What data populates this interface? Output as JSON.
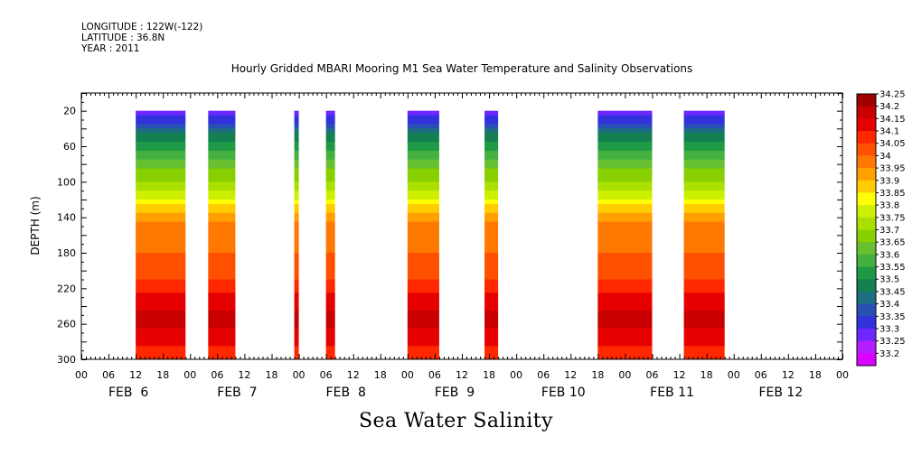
{
  "header": {
    "longitude": "LONGITUDE : 122W(-122)",
    "latitude": "LATITUDE : 36.8N",
    "year": "YEAR : 2011"
  },
  "chart_title": "Hourly Gridded MBARI Mooring M1 Sea Water Temperature and Salinity Observations",
  "bottom_title": "Sea Water Salinity",
  "chart_data": {
    "type": "heatmap",
    "variable": "Sea Water Salinity",
    "ylabel": "DEPTH (m)",
    "ylim": [
      300,
      0
    ],
    "y_ticks": [
      20,
      60,
      100,
      140,
      180,
      220,
      260,
      300
    ],
    "x_range_hours": [
      0,
      168
    ],
    "x_hour_ticks": [
      "00",
      "06",
      "12",
      "18"
    ],
    "days": [
      "FEB  6",
      "FEB  7",
      "FEB  8",
      "FEB  9",
      "FEB 10",
      "FEB 11",
      "FEB 12"
    ],
    "colorbar": {
      "levels": [
        "34.25",
        "34.2",
        "34.15",
        "34.1",
        "34.05",
        "34",
        "33.95",
        "33.9",
        "33.85",
        "33.8",
        "33.75",
        "33.7",
        "33.65",
        "33.6",
        "33.55",
        "33.5",
        "33.45",
        "33.4",
        "33.35",
        "33.3",
        "33.25",
        "33.2"
      ],
      "colors": [
        "#a00000",
        "#c80000",
        "#e60000",
        "#ff2800",
        "#ff5000",
        "#ff7800",
        "#ffa000",
        "#ffcc00",
        "#ffff00",
        "#ccf000",
        "#aae000",
        "#88d000",
        "#66c030",
        "#44b040",
        "#1e9a46",
        "#148050",
        "#1e6e82",
        "#2850b4",
        "#3232dc",
        "#6e28ff",
        "#b41eff",
        "#dc00ff"
      ]
    },
    "data_windows": [
      {
        "start": "FEB 6 12:00",
        "end": "FEB 6 23:00"
      },
      {
        "start": "FEB 7 04:00",
        "end": "FEB 7 10:00"
      },
      {
        "start": "FEB 7 23:00",
        "end": "FEB 8 00:00"
      },
      {
        "start": "FEB 8 06:00",
        "end": "FEB 8 08:00"
      },
      {
        "start": "FEB 9 00:00",
        "end": "FEB 9 07:00"
      },
      {
        "start": "FEB 9 17:00",
        "end": "FEB 9 20:00"
      },
      {
        "start": "FEB 10 18:00",
        "end": "FEB 11 06:00"
      },
      {
        "start": "FEB 11 13:00",
        "end": "FEB 11 22:00"
      }
    ],
    "profile": [
      {
        "depth": 20,
        "salinity": 33.3
      },
      {
        "depth": 30,
        "salinity": 33.38
      },
      {
        "depth": 40,
        "salinity": 33.45
      },
      {
        "depth": 50,
        "salinity": 33.52
      },
      {
        "depth": 60,
        "salinity": 33.58
      },
      {
        "depth": 70,
        "salinity": 33.63
      },
      {
        "depth": 80,
        "salinity": 33.67
      },
      {
        "depth": 90,
        "salinity": 33.71
      },
      {
        "depth": 100,
        "salinity": 33.75
      },
      {
        "depth": 110,
        "salinity": 33.8
      },
      {
        "depth": 120,
        "salinity": 33.85
      },
      {
        "depth": 130,
        "salinity": 33.92
      },
      {
        "depth": 140,
        "salinity": 33.99
      },
      {
        "depth": 150,
        "salinity": 34.02
      },
      {
        "depth": 180,
        "salinity": 34.05
      },
      {
        "depth": 200,
        "salinity": 34.08
      },
      {
        "depth": 220,
        "salinity": 34.13
      },
      {
        "depth": 240,
        "salinity": 34.19
      },
      {
        "depth": 255,
        "salinity": 34.23
      },
      {
        "depth": 270,
        "salinity": 34.19
      },
      {
        "depth": 285,
        "salinity": 34.15
      },
      {
        "depth": 300,
        "salinity": 34.13
      }
    ]
  }
}
